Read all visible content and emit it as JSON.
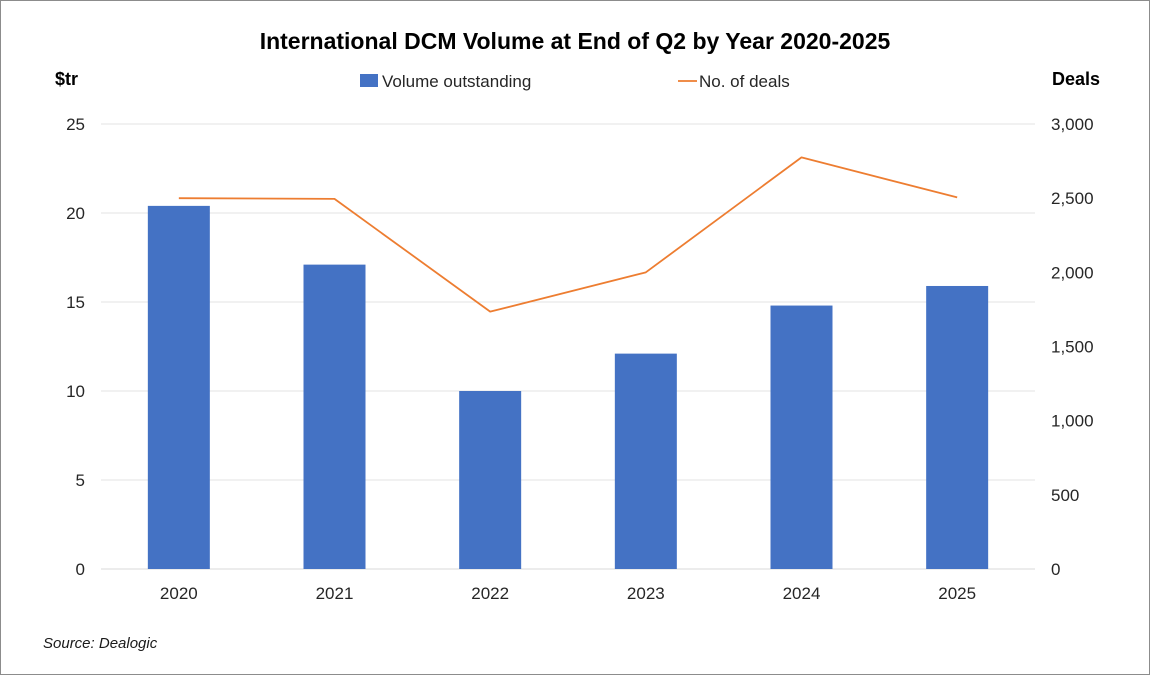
{
  "chart_data": {
    "type": "bar",
    "title": "International DCM Volume at End of Q2 by Year 2020-2025",
    "categories": [
      "2020",
      "2021",
      "2022",
      "2023",
      "2024",
      "2025"
    ],
    "series": [
      {
        "name": "Volume outstanding",
        "type": "bar",
        "axis": "left",
        "color": "#4472c4",
        "values": [
          20.4,
          17.1,
          10.0,
          12.1,
          14.8,
          15.9
        ]
      },
      {
        "name": "No. of deals",
        "type": "line",
        "axis": "right",
        "color": "#ed7d31",
        "values": [
          2500,
          2495,
          1735,
          2000,
          2775,
          2505
        ]
      }
    ],
    "ylabel_left": "$tr",
    "ylabel_right": "Deals",
    "ylim_left": [
      0,
      25
    ],
    "yticks_left": [
      "0",
      "5",
      "10",
      "15",
      "20",
      "25"
    ],
    "ylim_right": [
      0,
      3000
    ],
    "yticks_right": [
      "0",
      "500",
      "1,000",
      "1,500",
      "2,000",
      "2,500",
      "3,000"
    ],
    "grid": true,
    "legend_position": "top"
  },
  "source": "Source: Dealogic"
}
